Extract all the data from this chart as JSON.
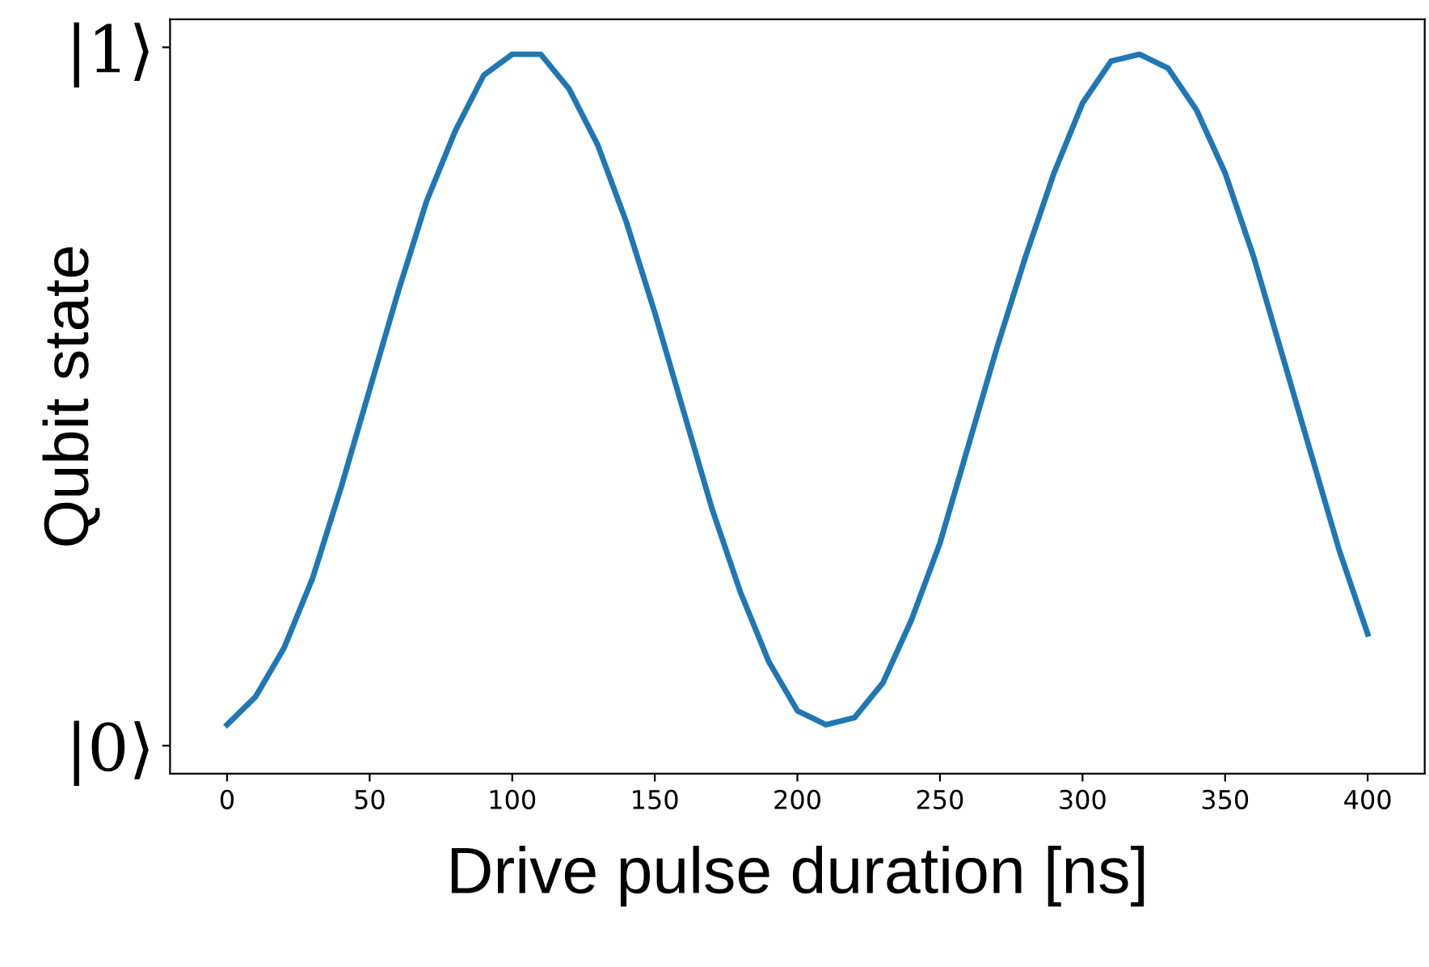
{
  "chart_data": {
    "type": "line",
    "xlabel": "Drive pulse duration [ns]",
    "ylabel": "Qubit state",
    "x": [
      0,
      10,
      20,
      30,
      40,
      50,
      60,
      70,
      80,
      90,
      100,
      110,
      120,
      130,
      140,
      150,
      160,
      170,
      180,
      190,
      200,
      210,
      220,
      230,
      240,
      250,
      260,
      270,
      280,
      290,
      300,
      310,
      320,
      330,
      340,
      350,
      360,
      370,
      380,
      390,
      400
    ],
    "series": [
      {
        "color": "#1f77b4",
        "values": [
          0.03,
          0.07,
          0.14,
          0.24,
          0.37,
          0.51,
          0.65,
          0.78,
          0.88,
          0.96,
          0.99,
          0.99,
          0.94,
          0.86,
          0.75,
          0.62,
          0.48,
          0.34,
          0.22,
          0.12,
          0.05,
          0.03,
          0.04,
          0.09,
          0.18,
          0.29,
          0.43,
          0.57,
          0.7,
          0.82,
          0.92,
          0.98,
          0.99,
          0.97,
          0.91,
          0.82,
          0.7,
          0.56,
          0.42,
          0.28,
          0.16
        ]
      }
    ],
    "xlim": [
      -20,
      420
    ],
    "xticks": [
      0,
      50,
      100,
      150,
      200,
      250,
      300,
      350,
      400
    ],
    "ylim": [
      -0.04,
      1.04
    ],
    "yticks": [
      {
        "value": 0,
        "label": "|0⟩"
      },
      {
        "value": 1,
        "label": "|1⟩"
      }
    ],
    "grid": false,
    "marker": "none",
    "line_style": "solid"
  }
}
